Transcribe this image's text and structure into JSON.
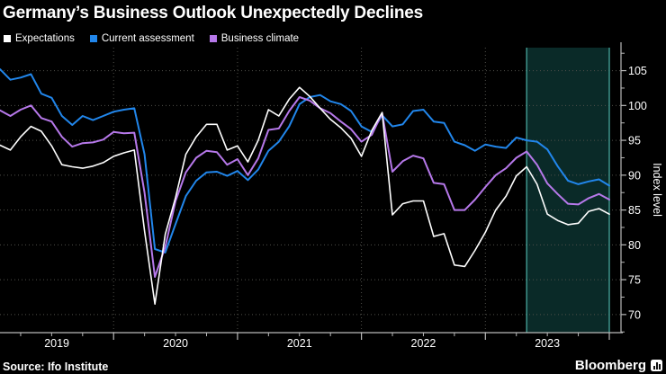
{
  "chart_data": {
    "type": "line",
    "title": "Germany’s Business Outlook Unexpectedly Declines",
    "source": "Source: Ifo Institute",
    "brand": "Bloomberg",
    "y_axis": {
      "label": "Index level",
      "ticks": [
        70,
        75,
        80,
        85,
        90,
        95,
        100,
        105
      ],
      "minor_tick_step": 2.5
    },
    "x_axis": {
      "years": [
        "2019",
        "2020",
        "2021",
        "2022",
        "2023"
      ]
    },
    "ylim": [
      67.4,
      108.3
    ],
    "legend_position": "top-left",
    "grid": "dotted",
    "months": [
      "2019-01",
      "2019-02",
      "2019-03",
      "2019-04",
      "2019-05",
      "2019-06",
      "2019-07",
      "2019-08",
      "2019-09",
      "2019-10",
      "2019-11",
      "2019-12",
      "2020-01",
      "2020-02",
      "2020-03",
      "2020-04",
      "2020-05",
      "2020-06",
      "2020-07",
      "2020-08",
      "2020-09",
      "2020-10",
      "2020-11",
      "2020-12",
      "2021-01",
      "2021-02",
      "2021-03",
      "2021-04",
      "2021-05",
      "2021-06",
      "2021-07",
      "2021-08",
      "2021-09",
      "2021-10",
      "2021-11",
      "2021-12",
      "2022-01",
      "2022-02",
      "2022-03",
      "2022-04",
      "2022-05",
      "2022-06",
      "2022-07",
      "2022-08",
      "2022-09",
      "2022-10",
      "2022-11",
      "2022-12",
      "2023-01",
      "2023-02",
      "2023-03",
      "2023-04",
      "2023-05",
      "2023-06",
      "2023-07",
      "2023-08",
      "2023-09",
      "2023-10",
      "2023-11",
      "2023-12"
    ],
    "series": [
      {
        "name": "Expectations",
        "color": "#ffffff",
        "width": 1.6,
        "values": [
          94.3,
          93.6,
          95.5,
          97.0,
          96.3,
          94.2,
          91.5,
          91.2,
          91.0,
          91.3,
          91.8,
          92.7,
          93.2,
          93.6,
          82.0,
          71.5,
          81.5,
          86.8,
          93.0,
          95.5,
          97.3,
          97.3,
          93.6,
          94.2,
          91.9,
          95.0,
          99.4,
          98.5,
          100.9,
          102.6,
          101.3,
          99.6,
          98.0,
          96.8,
          95.3,
          92.7,
          96.4,
          99.0,
          84.3,
          85.9,
          86.3,
          86.3,
          81.2,
          81.6,
          77.1,
          76.9,
          79.2,
          81.8,
          85.0,
          87.0,
          89.9,
          91.2,
          88.7,
          84.4,
          83.5,
          82.9,
          83.1,
          84.8,
          85.2,
          84.4
        ]
      },
      {
        "name": "Current assessment",
        "color": "#2186eb",
        "width": 2,
        "values": [
          105.2,
          103.7,
          104.0,
          104.5,
          101.7,
          101.1,
          98.5,
          97.2,
          98.5,
          97.9,
          98.5,
          99.1,
          99.4,
          99.6,
          93.0,
          79.4,
          78.9,
          83.0,
          87.0,
          89.2,
          90.4,
          90.5,
          89.9,
          90.6,
          89.3,
          90.8,
          93.5,
          94.8,
          97.0,
          100.2,
          101.2,
          101.5,
          100.6,
          100.2,
          99.2,
          97.0,
          96.2,
          98.6,
          97.0,
          97.3,
          99.2,
          99.4,
          97.7,
          97.5,
          94.8,
          94.3,
          93.5,
          94.4,
          94.1,
          93.9,
          95.4,
          95.0,
          94.8,
          93.7,
          91.3,
          89.2,
          88.7,
          89.1,
          89.4,
          88.5
        ]
      },
      {
        "name": "Business climate",
        "color": "#b678ea",
        "width": 2,
        "values": [
          99.3,
          98.5,
          99.4,
          100.0,
          98.2,
          97.7,
          95.5,
          94.1,
          94.6,
          94.7,
          95.1,
          96.2,
          96.0,
          96.1,
          87.5,
          75.4,
          79.7,
          86.3,
          90.4,
          92.5,
          93.5,
          93.3,
          91.5,
          92.3,
          90.0,
          92.4,
          96.5,
          96.7,
          99.2,
          101.2,
          100.7,
          99.6,
          98.9,
          97.7,
          96.6,
          94.8,
          95.8,
          98.9,
          90.5,
          92.0,
          92.8,
          92.4,
          88.9,
          88.7,
          85.0,
          85.0,
          86.5,
          88.3,
          90.0,
          91.0,
          92.5,
          93.4,
          91.5,
          88.8,
          87.3,
          85.9,
          85.8,
          86.7,
          87.3,
          86.5
        ]
      }
    ],
    "highlight": {
      "from": "2023-04",
      "to": "2023-12",
      "fill": "#0a2a28",
      "border": "#3e948c"
    },
    "colors": {
      "background": "#000000",
      "grid": "#50504a",
      "axis": "#b9b9b9",
      "text": "#ffffff"
    }
  }
}
